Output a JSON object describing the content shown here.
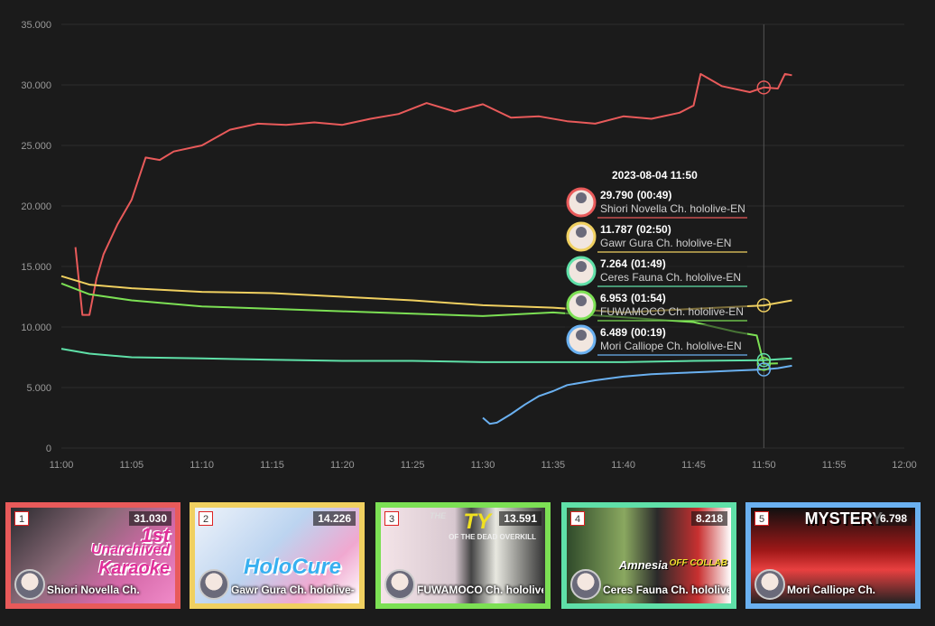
{
  "chart_data": {
    "type": "line",
    "x_ticks": [
      "11:00",
      "11:05",
      "11:10",
      "11:15",
      "11:20",
      "11:25",
      "11:30",
      "11:35",
      "11:40",
      "11:45",
      "11:50",
      "11:55",
      "12:00"
    ],
    "xlim": [
      "11:00",
      "12:00"
    ],
    "y_ticks": [
      "0",
      "5.000",
      "10.000",
      "15.000",
      "20.000",
      "25.000",
      "30.000",
      "35.000"
    ],
    "ylim": [
      0,
      35000
    ],
    "grid": true,
    "series": [
      {
        "name": "Shiori Novella Ch. hololive-EN",
        "color": "#e85a5a",
        "x": [
          "11:01",
          "11:01:30",
          "11:02",
          "11:02:30",
          "11:03",
          "11:04",
          "11:05",
          "11:06",
          "11:07",
          "11:08",
          "11:10",
          "11:12",
          "11:14",
          "11:16",
          "11:18",
          "11:20",
          "11:22",
          "11:24",
          "11:26",
          "11:28",
          "11:30",
          "11:32",
          "11:34",
          "11:36",
          "11:38",
          "11:40",
          "11:42",
          "11:44",
          "11:45",
          "11:45:30",
          "11:47",
          "11:49",
          "11:50",
          "11:51",
          "11:51:30",
          "11:52"
        ],
        "y": [
          16600,
          11000,
          11000,
          14000,
          16000,
          18500,
          20500,
          24000,
          23800,
          24500,
          25000,
          26300,
          26800,
          26700,
          26900,
          26700,
          27200,
          27600,
          28500,
          27800,
          28400,
          27300,
          27400,
          27000,
          26800,
          27400,
          27200,
          27700,
          28300,
          30900,
          29900,
          29400,
          29790,
          29700,
          30900,
          30800
        ]
      },
      {
        "name": "Gawr Gura Ch. hololive-EN",
        "color": "#f0d060",
        "x": [
          "11:00",
          "11:02",
          "11:05",
          "11:10",
          "11:15",
          "11:20",
          "11:25",
          "11:30",
          "11:35",
          "11:40",
          "11:45",
          "11:50",
          "11:52"
        ],
        "y": [
          14200,
          13500,
          13200,
          12900,
          12800,
          12500,
          12200,
          11800,
          11600,
          11200,
          11500,
          11787,
          12200
        ]
      },
      {
        "name": "FUWAMOCO Ch. hololive-EN",
        "color": "#7ce054",
        "x": [
          "11:00",
          "11:02",
          "11:05",
          "11:10",
          "11:15",
          "11:20",
          "11:25",
          "11:30",
          "11:35",
          "11:40",
          "11:45",
          "11:48",
          "11:49:30",
          "11:50",
          "11:51"
        ],
        "y": [
          13600,
          12700,
          12200,
          11700,
          11500,
          11300,
          11100,
          10900,
          11200,
          10800,
          10400,
          9600,
          9300,
          6953,
          7000
        ]
      },
      {
        "name": "Ceres Fauna Ch. hololive-EN",
        "color": "#5fe0a8",
        "x": [
          "11:00",
          "11:02",
          "11:05",
          "11:10",
          "11:15",
          "11:20",
          "11:25",
          "11:30",
          "11:35",
          "11:40",
          "11:45",
          "11:50",
          "11:52"
        ],
        "y": [
          8200,
          7800,
          7500,
          7400,
          7300,
          7200,
          7200,
          7100,
          7100,
          7100,
          7200,
          7264,
          7400
        ]
      },
      {
        "name": "Mori Calliope Ch. hololive-EN",
        "color": "#6ab0f0",
        "x": [
          "11:30",
          "11:30:30",
          "11:31",
          "11:32",
          "11:33",
          "11:34",
          "11:35",
          "11:36",
          "11:38",
          "11:40",
          "11:42",
          "11:44",
          "11:46",
          "11:48",
          "11:50",
          "11:51",
          "11:52"
        ],
        "y": [
          2500,
          2000,
          2100,
          2800,
          3600,
          4300,
          4700,
          5200,
          5600,
          5900,
          6100,
          6200,
          6300,
          6400,
          6489,
          6600,
          6800
        ]
      }
    ],
    "tooltip": {
      "title": "2023-08-04 11:50",
      "x": "11:50",
      "entries": [
        {
          "value": "29.790",
          "duration": "(00:49)",
          "name": "Shiori Novella Ch. hololive-EN",
          "color": "#e85a5a"
        },
        {
          "value": "11.787",
          "duration": "(02:50)",
          "name": "Gawr Gura Ch. hololive-EN",
          "color": "#f0d060"
        },
        {
          "value": "7.264",
          "duration": "(01:49)",
          "name": "Ceres Fauna Ch. hololive-EN",
          "color": "#5fe0a8"
        },
        {
          "value": "6.953",
          "duration": "(01:54)",
          "name": "FUWAMOCO Ch. hololive-EN",
          "color": "#7ce054"
        },
        {
          "value": "6.489",
          "duration": "(00:19)",
          "name": "Mori Calliope Ch. hololive-EN",
          "color": "#6ab0f0"
        }
      ]
    }
  },
  "cards": [
    {
      "rank": "1",
      "count": "31.030",
      "name": "Shiori Novella Ch.",
      "color": "#e85a5a",
      "thumb_text": [
        "1st",
        "Unarchived",
        "Karaoke"
      ]
    },
    {
      "rank": "2",
      "count": "14.226",
      "name": "Gawr Gura Ch. hololive-",
      "color": "#f0d060",
      "thumb_text": [
        "HoloCure"
      ]
    },
    {
      "rank": "3",
      "count": "13.591",
      "name": "FUWAMOCO Ch. hololive-",
      "color": "#7ce054",
      "thumb_text": [
        "THE",
        "TY",
        "OF THE DEAD OVERKILL"
      ]
    },
    {
      "rank": "4",
      "count": "8.218",
      "name": "Ceres Fauna Ch. hololive-",
      "color": "#5fe0a8",
      "thumb_text": [
        "Amnesia",
        "OFF COLLAB"
      ]
    },
    {
      "rank": "5",
      "count": "6.798",
      "name": "Mori Calliope Ch.",
      "color": "#6ab0f0",
      "thumb_text": [
        "MYSTERY"
      ]
    }
  ]
}
